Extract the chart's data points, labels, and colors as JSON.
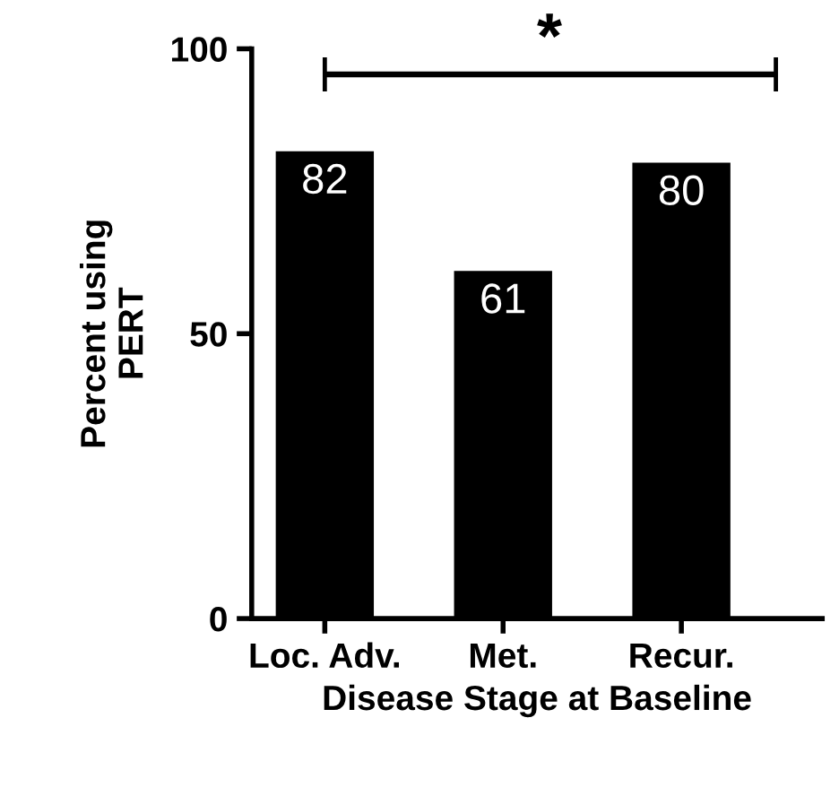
{
  "chart_data": {
    "type": "bar",
    "xlabel": "Disease Stage at Baseline",
    "ylabel": "Percent using\nPERT",
    "categories": [
      "Loc. Adv.",
      "Met.",
      "Recur."
    ],
    "values": [
      82,
      61,
      80
    ],
    "color": "#000000",
    "ylim": [
      0,
      100
    ],
    "yticks": [
      0,
      50,
      100
    ],
    "grid": false,
    "data_labels": true,
    "annotations": [
      "*"
    ]
  }
}
